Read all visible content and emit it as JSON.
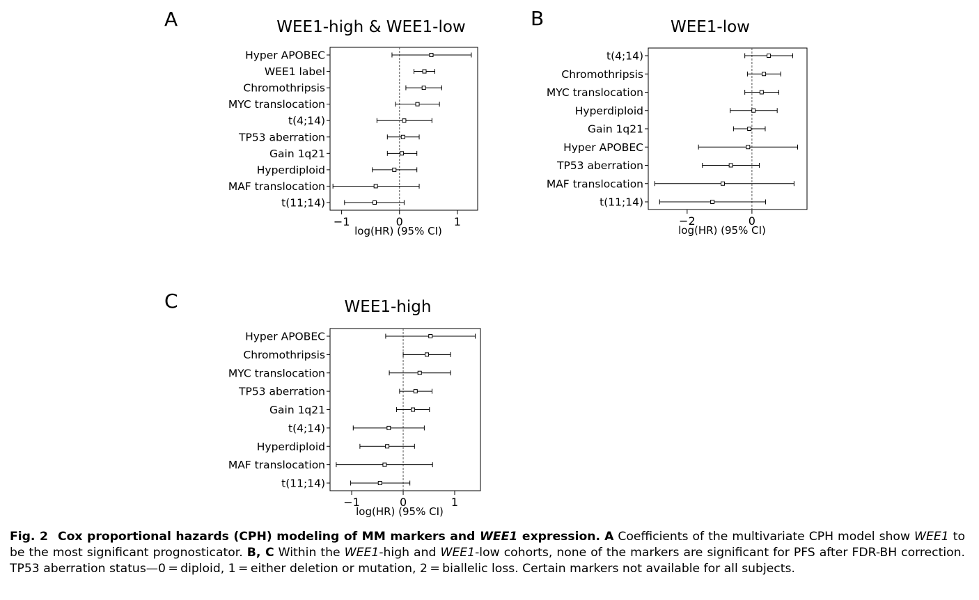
{
  "chart_data": [
    {
      "panel": "A",
      "type": "forest",
      "title": "WEE1-high & WEE1-low",
      "xlabel": "log(HR) (95% CI)",
      "xlim": [
        -1.2,
        1.35
      ],
      "xticks": [
        -1,
        0,
        1
      ],
      "xtick_labels": [
        "−1",
        "0",
        "1"
      ],
      "reference_line": 0,
      "rows": [
        {
          "label": "Hyper APOBEC",
          "coef": 0.55,
          "lower": -0.13,
          "upper": 1.24
        },
        {
          "label": "WEE1 label",
          "coef": 0.43,
          "lower": 0.25,
          "upper": 0.61
        },
        {
          "label": "Chromothripsis",
          "coef": 0.42,
          "lower": 0.11,
          "upper": 0.73
        },
        {
          "label": "MYC translocation",
          "coef": 0.31,
          "lower": -0.07,
          "upper": 0.69
        },
        {
          "label": "t(4;14)",
          "coef": 0.08,
          "lower": -0.39,
          "upper": 0.56
        },
        {
          "label": "TP53 aberration",
          "coef": 0.06,
          "lower": -0.21,
          "upper": 0.34
        },
        {
          "label": "Gain 1q21",
          "coef": 0.04,
          "lower": -0.21,
          "upper": 0.3
        },
        {
          "label": "Hyperdiploid",
          "coef": -0.09,
          "lower": -0.47,
          "upper": 0.3
        },
        {
          "label": "MAF translocation",
          "coef": -0.41,
          "lower": -1.15,
          "upper": 0.34
        },
        {
          "label": "t(11;14)",
          "coef": -0.43,
          "lower": -0.95,
          "upper": 0.08
        }
      ]
    },
    {
      "panel": "B",
      "type": "forest",
      "title": "WEE1-low",
      "xlabel": "log(HR) (95% CI)",
      "xlim": [
        -3.2,
        1.7
      ],
      "xticks": [
        -2,
        0
      ],
      "xtick_labels": [
        "−2",
        "0"
      ],
      "reference_line": 0,
      "rows": [
        {
          "label": "t(4;14)",
          "coef": 0.52,
          "lower": -0.22,
          "upper": 1.26
        },
        {
          "label": "Chromothripsis",
          "coef": 0.37,
          "lower": -0.14,
          "upper": 0.89
        },
        {
          "label": "MYC translocation",
          "coef": 0.3,
          "lower": -0.22,
          "upper": 0.83
        },
        {
          "label": "Hyperdiploid",
          "coef": 0.05,
          "lower": -0.67,
          "upper": 0.78
        },
        {
          "label": "Gain 1q21",
          "coef": -0.08,
          "lower": -0.57,
          "upper": 0.41
        },
        {
          "label": "Hyper APOBEC",
          "coef": -0.12,
          "lower": -1.65,
          "upper": 1.41
        },
        {
          "label": "TP53 aberration",
          "coef": -0.65,
          "lower": -1.53,
          "upper": 0.23
        },
        {
          "label": "MAF translocation",
          "coef": -0.9,
          "lower": -3.0,
          "upper": 1.3
        },
        {
          "label": "t(11;14)",
          "coef": -1.22,
          "lower": -2.85,
          "upper": 0.42
        }
      ]
    },
    {
      "panel": "C",
      "type": "forest",
      "title": "WEE1-high",
      "xlabel": "log(HR) (95% CI)",
      "xlim": [
        -1.42,
        1.5
      ],
      "xticks": [
        -1,
        0,
        1
      ],
      "xtick_labels": [
        "−1",
        "0",
        "1"
      ],
      "reference_line": 0,
      "rows": [
        {
          "label": "Hyper APOBEC",
          "coef": 0.53,
          "lower": -0.34,
          "upper": 1.4
        },
        {
          "label": "Chromothripsis",
          "coef": 0.46,
          "lower": 0.0,
          "upper": 0.92
        },
        {
          "label": "MYC translocation",
          "coef": 0.32,
          "lower": -0.27,
          "upper": 0.92
        },
        {
          "label": "TP53 aberration",
          "coef": 0.24,
          "lower": -0.07,
          "upper": 0.56
        },
        {
          "label": "Gain 1q21",
          "coef": 0.19,
          "lower": -0.13,
          "upper": 0.51
        },
        {
          "label": "t(4;14)",
          "coef": -0.28,
          "lower": -0.97,
          "upper": 0.41
        },
        {
          "label": "Hyperdiploid",
          "coef": -0.31,
          "lower": -0.84,
          "upper": 0.22
        },
        {
          "label": "MAF translocation",
          "coef": -0.36,
          "lower": -1.3,
          "upper": 0.57
        },
        {
          "label": "t(11;14)",
          "coef": -0.45,
          "lower": -1.02,
          "upper": 0.13
        }
      ]
    }
  ],
  "caption": {
    "fig_label": "Fig. 2",
    "title_part1": "Cox proportional hazards (CPH) modeling of MM markers and ",
    "title_italic": "WEE1",
    "title_part2": " expression.",
    "a_label": "A",
    "a_text": " Coefficients of the multivariate CPH model show ",
    "a_italic": "WEE1",
    "a_text2": " to be the most significant prognosticator.",
    "bc_label1": "B",
    "bc_sep": ", ",
    "bc_label2": "C",
    "bc_text1": " Within the ",
    "bc_italic1": "WEE1",
    "bc_text2": "-high and ",
    "bc_italic2": "WEE1",
    "bc_text3": "-low cohorts, none of the markers are significant for PFS after FDR-BH correction. TP53 aberration status—0 = diploid, 1 = either deletion or mutation, 2 = biallelic loss. Certain markers not available for all subjects."
  }
}
